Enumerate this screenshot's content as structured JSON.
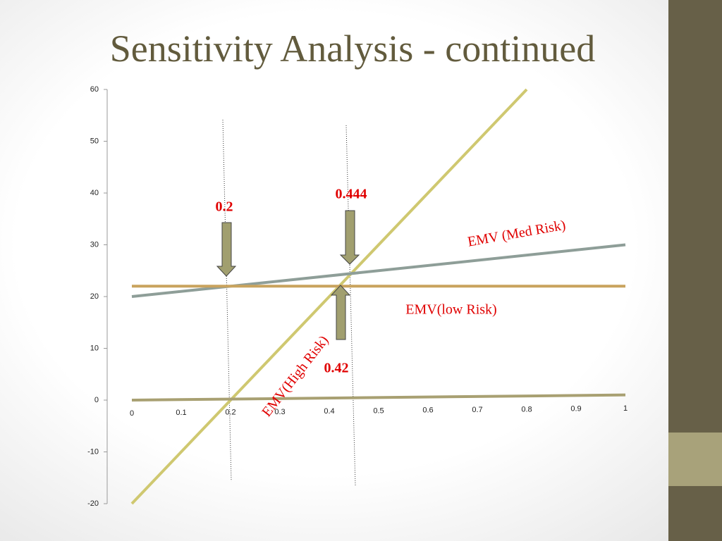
{
  "chart_data": {
    "type": "line",
    "title": "Sensitivity Analysis - continued",
    "xlim": [
      0,
      1
    ],
    "xticks": [
      0,
      0.1,
      0.2,
      0.3,
      0.4,
      0.5,
      0.6,
      0.7,
      0.8,
      0.9,
      1
    ],
    "ylim": [
      -20,
      60
    ],
    "yticks": [
      -20,
      -10,
      0,
      10,
      20,
      30,
      40,
      50,
      60
    ],
    "series": [
      {
        "name": "EMV(High Risk)",
        "color": "#cfc870",
        "x": [
          0,
          0.8
        ],
        "values": [
          -20,
          60
        ]
      },
      {
        "name": "EMV (Med Risk)",
        "color": "#8e9e98",
        "x": [
          0,
          1
        ],
        "values": [
          20,
          30
        ]
      },
      {
        "name": "EMV(low Risk)",
        "color": "#c9a35e",
        "x": [
          0,
          1
        ],
        "values": [
          22,
          22
        ]
      },
      {
        "color": "#a8a072",
        "x": [
          0,
          1
        ],
        "values": [
          0,
          1
        ]
      }
    ],
    "annotations": [
      "0.2",
      "0.444",
      "0.42"
    ]
  }
}
